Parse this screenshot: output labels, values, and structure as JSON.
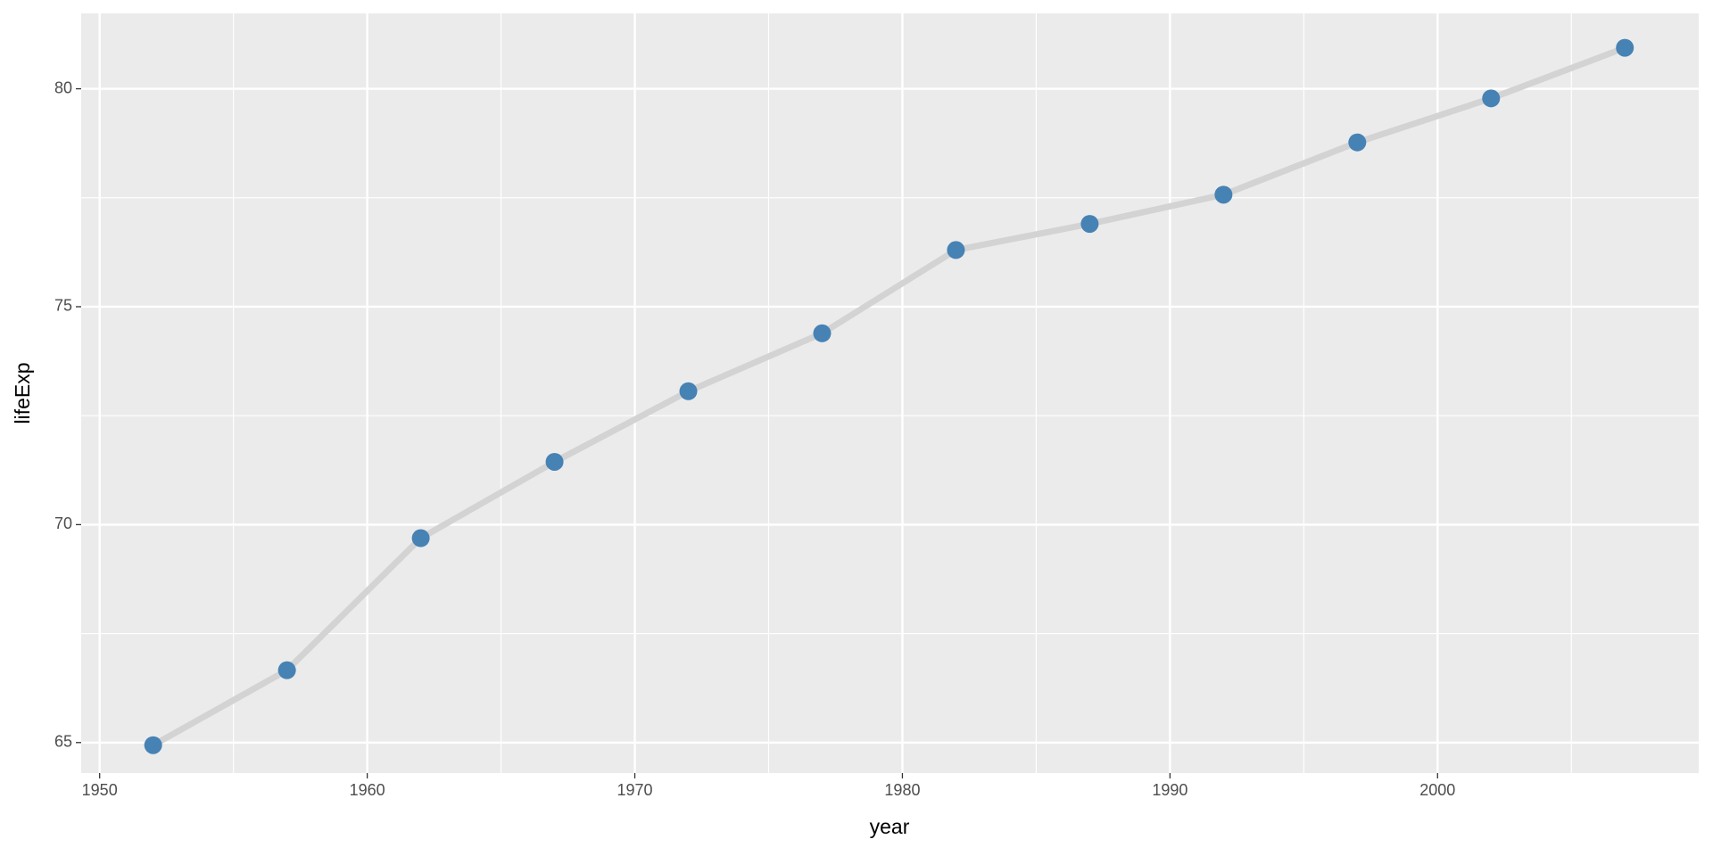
{
  "chart_data": {
    "type": "line",
    "x_label": "year",
    "y_label": "lifeExp",
    "x": [
      1952,
      1957,
      1962,
      1967,
      1972,
      1977,
      1982,
      1987,
      1992,
      1997,
      2002,
      2007
    ],
    "series": [
      {
        "values": [
          64.94,
          66.66,
          69.69,
          71.44,
          73.06,
          74.39,
          76.3,
          76.9,
          77.57,
          78.77,
          79.78,
          80.94
        ],
        "line_color": "#d3d3d3",
        "color": "#4682b4"
      }
    ],
    "xlim": [
      1949.31,
      2009.76
    ],
    "xticks": [
      1950,
      1960,
      1970,
      1980,
      1990,
      2000
    ],
    "xminorticks": [
      1955,
      1965,
      1975,
      1985,
      1995,
      2005
    ],
    "ylim": [
      64.3,
      81.73
    ],
    "yticks": [
      65,
      70,
      75,
      80
    ],
    "yminorticks": [
      67.5,
      72.5,
      77.5
    ],
    "grid": true
  }
}
